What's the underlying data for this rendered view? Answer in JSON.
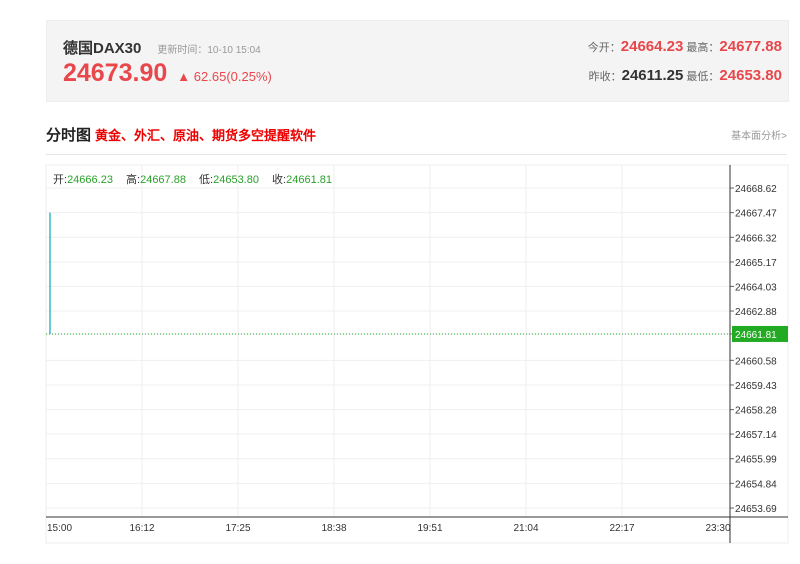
{
  "quote": {
    "name": "德国DAX30",
    "update_label": "更新时间：",
    "update_time": "10-10 15:04",
    "price": "24673.90",
    "change": "62.65(0.25%)",
    "open_label": "今开：",
    "open": "24664.23",
    "high_label": "最高：",
    "high": "24677.88",
    "prev_close_label": "昨收：",
    "prev_close": "24611.25",
    "low_label": "最低：",
    "low": "24653.80"
  },
  "section": {
    "title": "分时图",
    "ad": "黄金、外汇、原油、期货多空提醒软件",
    "link": "基本面分析>"
  },
  "legend": {
    "open_label": "开:",
    "open": "24666.23",
    "high_label": "高:",
    "high": "24667.88",
    "low_label": "低:",
    "low": "24653.80",
    "close_label": "收:",
    "close": "24661.81"
  },
  "chart_data": {
    "type": "line",
    "x_ticks": [
      "15:00",
      "16:12",
      "17:25",
      "18:38",
      "19:51",
      "21:04",
      "22:17",
      "23:30"
    ],
    "y_ticks": [
      "24668.62",
      "24667.47",
      "24666.32",
      "24665.17",
      "24664.03",
      "24662.88",
      "24661.81",
      "24660.58",
      "24659.43",
      "24658.28",
      "24657.14",
      "24655.99",
      "24654.84",
      "24653.69"
    ],
    "ylim": [
      24653.69,
      24668.62
    ],
    "points": [
      {
        "x": "15:00",
        "y": 24667.47
      },
      {
        "x": "15:00",
        "y": 24661.81
      }
    ],
    "last_price": 24661.81,
    "grid": true,
    "colors": {
      "line": "#3bb8c8",
      "last_price": "#22aa22",
      "up": "#e8474c"
    }
  }
}
